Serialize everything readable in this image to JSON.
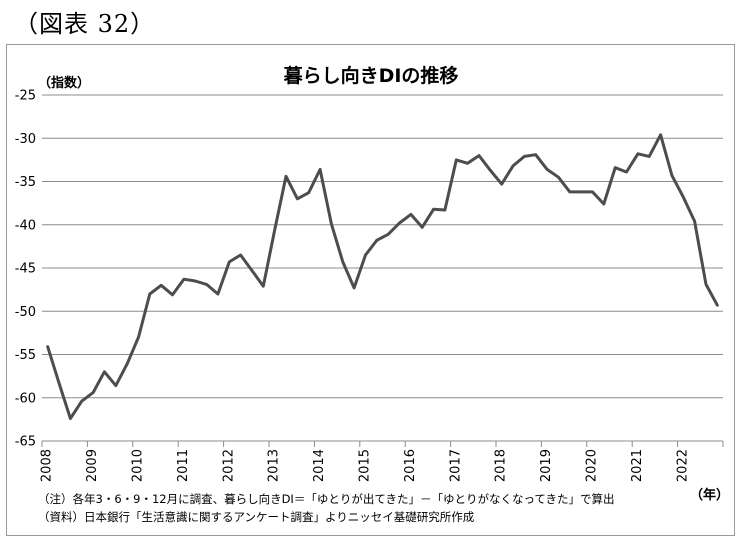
{
  "figure_label": "（図表 32）",
  "chart_data": {
    "type": "line",
    "title": "暮らし向きDIの推移",
    "ylabel": "（指数）",
    "xlabel": "（年）",
    "ylim": [
      -65,
      -25
    ],
    "yticks": [
      -25,
      -30,
      -35,
      -40,
      -45,
      -50,
      -55,
      -60,
      -65
    ],
    "year_labels": [
      "2008",
      "2009",
      "2010",
      "2011",
      "2012",
      "2013",
      "2014",
      "2015",
      "2016",
      "2017",
      "2018",
      "2019",
      "2020",
      "2021",
      "2022"
    ],
    "grid": true,
    "legend": "none",
    "line_color": "#4d4d4d",
    "series": [
      {
        "x": [
          "2008-03",
          "2008-06",
          "2008-09",
          "2008-12",
          "2009-03",
          "2009-06",
          "2009-09",
          "2009-12",
          "2010-03",
          "2010-06",
          "2010-09",
          "2010-12",
          "2011-03",
          "2011-06",
          "2011-09",
          "2011-12",
          "2012-03",
          "2012-06",
          "2012-09",
          "2012-12",
          "2013-03",
          "2013-06",
          "2013-09",
          "2013-12",
          "2014-03",
          "2014-06",
          "2014-09",
          "2014-12",
          "2015-03",
          "2015-06",
          "2015-09",
          "2015-12",
          "2016-03",
          "2016-06",
          "2016-09",
          "2016-12",
          "2017-03",
          "2017-06",
          "2017-09",
          "2017-12",
          "2018-03",
          "2018-06",
          "2018-09",
          "2018-12",
          "2019-03",
          "2019-06",
          "2019-09",
          "2019-12",
          "2020-03",
          "2020-06",
          "2020-09",
          "2020-12",
          "2021-03",
          "2021-06",
          "2021-09",
          "2021-12",
          "2022-03",
          "2022-06",
          "2022-09",
          "2022-12"
        ],
        "values": [
          -54.1,
          -58.3,
          -62.4,
          -60.4,
          -59.4,
          -57.0,
          -58.6,
          -56.1,
          -53.0,
          -48.0,
          -47.0,
          -48.1,
          -46.3,
          -46.5,
          -46.9,
          -48.0,
          -44.3,
          -43.5,
          -45.3,
          -47.1,
          -40.6,
          -34.4,
          -37.0,
          -36.3,
          -33.6,
          -39.9,
          -44.3,
          -47.3,
          -43.5,
          -41.8,
          -41.1,
          -39.8,
          -38.8,
          -40.3,
          -38.2,
          -38.3,
          -32.5,
          -32.9,
          -32.0,
          -33.7,
          -35.3,
          -33.2,
          -32.1,
          -31.9,
          -33.6,
          -34.5,
          -36.2,
          -36.2,
          -36.2,
          -37.6,
          -33.4,
          -33.9,
          -31.8,
          -32.1,
          -29.6,
          -34.3,
          -36.8,
          -39.6,
          -46.9,
          -49.3
        ]
      }
    ]
  },
  "notes": {
    "line1": "（注）各年3・6・9・12月に調査、暮らし向きDI＝「ゆとりが出てきた」－「ゆとりがなくなってきた」で算出",
    "line2": "（資料）日本銀行「生活意識に関するアンケート調査」よりニッセイ基礎研究所作成"
  }
}
